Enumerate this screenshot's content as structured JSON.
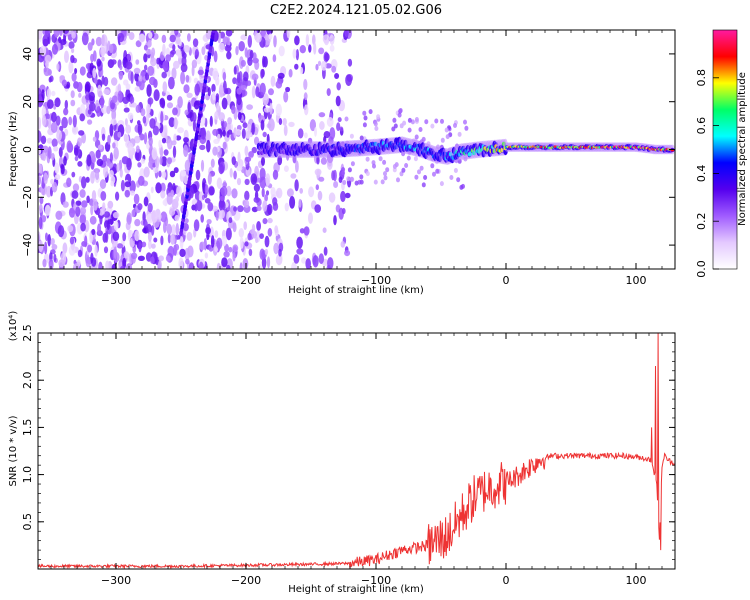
{
  "title": "C2E2.2024.121.05.02.G06",
  "chart_data": [
    {
      "type": "heatmap",
      "xlabel": "Height of straight line (km)",
      "ylabel": "Frequency (Hz)",
      "xlim": [
        -360,
        130
      ],
      "ylim": [
        -50,
        50
      ],
      "xticks": [
        -300,
        -200,
        -100,
        0,
        100
      ],
      "yticks": [
        -40,
        -20,
        0,
        20,
        40
      ],
      "colorbar": {
        "label": "Normalized spectral amplitude",
        "range": [
          0.0,
          1.0
        ],
        "ticks": [
          "0.0",
          "0.2",
          "0.4",
          "0.6",
          "0.8"
        ],
        "colors": [
          "#ffffff",
          "#e4c9ff",
          "#a05cff",
          "#5500ee",
          "#0000ff",
          "#00ffff",
          "#00ff66",
          "#ffff00",
          "#ff0000",
          "#ff1aa0"
        ]
      },
      "noise_region_km": [
        -360,
        -120
      ],
      "noise_amplitude": 0.3,
      "phase_line": [
        [
          -250,
          -35
        ],
        [
          -225,
          50
        ]
      ],
      "phase_line_amplitude": 0.35,
      "signal_ridge": [
        [
          -190,
          0
        ],
        [
          -160,
          0
        ],
        [
          -130,
          0
        ],
        [
          -100,
          1
        ],
        [
          -80,
          2
        ],
        [
          -65,
          0
        ],
        [
          -55,
          -2
        ],
        [
          -45,
          -3
        ],
        [
          -35,
          -1
        ],
        [
          -20,
          0
        ],
        [
          0,
          1
        ],
        [
          50,
          1
        ],
        [
          100,
          1
        ],
        [
          115,
          0
        ],
        [
          125,
          0
        ]
      ],
      "signal_amplitude": [
        [
          -190,
          0.35
        ],
        [
          -130,
          0.4
        ],
        [
          -80,
          0.55
        ],
        [
          -50,
          0.5
        ],
        [
          -20,
          0.7
        ],
        [
          0,
          0.8
        ],
        [
          50,
          0.85
        ],
        [
          100,
          0.9
        ],
        [
          125,
          0.9
        ]
      ]
    },
    {
      "type": "line",
      "xlabel": "Height of straight line (km)",
      "ylabel": "SNR (10 * v/v)",
      "yscale_label": "(x10⁴)",
      "xlim": [
        -360,
        130
      ],
      "ylim": [
        0,
        2.5
      ],
      "xticks": [
        -300,
        -200,
        -100,
        0,
        100
      ],
      "yticks": [
        0.5,
        1.0,
        1.5,
        2.0,
        2.5
      ],
      "color": "#ee3333",
      "series": [
        {
          "x": [
            -360,
            -300,
            -250,
            -200,
            -150,
            -120,
            -100,
            -80,
            -60,
            -45,
            -35,
            -25,
            -15,
            -5,
            5,
            15,
            25,
            35,
            50,
            70,
            90,
            105,
            112,
            116,
            118,
            120,
            122,
            125,
            130
          ],
          "y": [
            0.03,
            0.03,
            0.03,
            0.04,
            0.05,
            0.06,
            0.1,
            0.2,
            0.25,
            0.35,
            0.55,
            0.75,
            0.85,
            0.9,
            0.95,
            1.05,
            1.15,
            1.2,
            1.2,
            1.2,
            1.2,
            1.18,
            1.15,
            0.9,
            0.3,
            1.1,
            1.2,
            1.15,
            1.12
          ]
        }
      ],
      "spikes": [
        [
          117,
          2.5
        ],
        [
          115,
          2.15
        ],
        [
          119,
          0.2
        ],
        [
          112,
          1.5
        ]
      ]
    }
  ]
}
